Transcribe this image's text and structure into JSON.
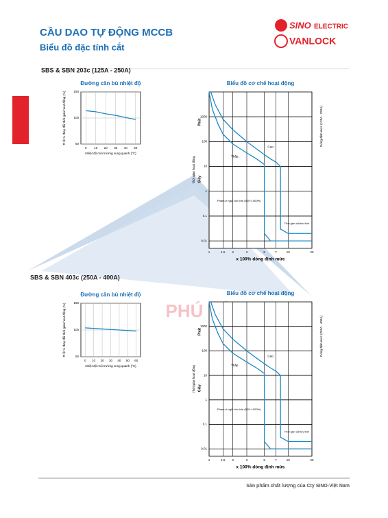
{
  "header": {
    "title": "CẦU DAO TỰ ĐỘNG MCCB",
    "subtitle": "Biểu đồ đặc tính cắt",
    "brand1": "SINO",
    "brand1b": "ELECTRIC",
    "brand2": "VANLOCK"
  },
  "watermark": "PHÚ LỘC",
  "sections": [
    {
      "heading": "SBS & SBN 203c (125A - 250A)",
      "temp_chart": {
        "type": "line",
        "title": "Đường cân bù nhiệt độ",
        "ylabel": "Tỉ lệ % thay đổi thời gian hoạt động (%)",
        "xlabel": "Nhiệt độ môi trường xung quanh (°C)",
        "x": [
          0,
          10,
          20,
          30,
          40,
          50
        ],
        "values": [
          114,
          112,
          108,
          105,
          101,
          97
        ],
        "color": "#1a8ac6",
        "xlim": [
          -5,
          55
        ],
        "ylim": [
          50,
          150
        ],
        "xticks": [
          0,
          10,
          20,
          30,
          40,
          50
        ],
        "yticks": [
          50,
          100,
          150
        ],
        "grid": true
      },
      "trip_chart": {
        "type": "line",
        "log": true,
        "title": "Biểu đồ cơ chế hoạt động",
        "ylabel": "Thời gian hoạt động",
        "minute_label": "Phút",
        "second_label": "Giây",
        "right_label": "Dòng định mức (125A - 250A)",
        "xlabel": "x 100% dòng định mức",
        "high_label": "Cao.",
        "low_label": "Thấp.",
        "range_label": "Phạm vi ngắt tức thời (500~1000%)",
        "instant_label": "Thời gian cắt tức thời",
        "xlim": [
          1,
          20
        ],
        "ylim": [
          0.005,
          10000
        ],
        "xticks": [
          1,
          1.5,
          2,
          3,
          5,
          7,
          10,
          20
        ],
        "yticks": [
          0.01,
          0.1,
          1,
          10,
          100,
          1000
        ],
        "grid": true,
        "series": [
          {
            "name": "Cao.",
            "color": "#1a8ac6",
            "x": [
              1.05,
              1.2,
              1.5,
              2,
              3,
              4,
              5,
              6,
              7,
              8,
              8,
              10,
              20
            ],
            "values": [
              10000,
              3000,
              800,
              300,
              100,
              50,
              30,
              20,
              15,
              10,
              0.03,
              0.02,
              0.02
            ]
          },
          {
            "name": "Thấp.",
            "color": "#1a8ac6",
            "x": [
              1,
              1.1,
              1.3,
              1.5,
              2,
              3,
              4,
              5,
              5,
              6,
              20
            ],
            "values": [
              10000,
              2000,
              500,
              200,
              80,
              35,
              20,
              12,
              0.02,
              0.01,
              0.01
            ]
          }
        ]
      }
    },
    {
      "heading": "SBS & SBN 403c (250A - 400A)",
      "temp_chart": {
        "type": "line",
        "title": "Đường cân bù nhiệt độ",
        "ylabel": "Tỉ lệ % thay đổi thời gian hoạt động (%)",
        "xlabel": "Nhiệt độ môi trường xung quanh (°C)",
        "x": [
          0,
          10,
          20,
          30,
          40,
          50,
          60
        ],
        "values": [
          104,
          103,
          102,
          101,
          100,
          99,
          98
        ],
        "color": "#1a8ac6",
        "xlim": [
          -5,
          65
        ],
        "ylim": [
          50,
          150
        ],
        "xticks": [
          0,
          10,
          20,
          30,
          40,
          50,
          60
        ],
        "yticks": [
          50,
          100,
          150
        ],
        "grid": true
      },
      "trip_chart": {
        "type": "line",
        "log": true,
        "title": "Biểu đồ cơ chế hoạt động",
        "ylabel": "Thời gian hoạt động",
        "minute_label": "Phút",
        "second_label": "Giây",
        "right_label": "Dòng định mức (250A - 400A)",
        "xlabel": "x 100% dòng định mức",
        "high_label": "Cao.",
        "low_label": "Thấp.",
        "range_label": "Phạm vi ngắt tức thời (500~1000%)",
        "instant_label": "Thời gian cắt tức thời",
        "xlim": [
          1,
          20
        ],
        "ylim": [
          0.005,
          10000
        ],
        "xticks": [
          1,
          1.5,
          2,
          3,
          5,
          7,
          10,
          20
        ],
        "yticks": [
          0.01,
          0.1,
          1,
          10,
          100,
          1000
        ],
        "grid": true,
        "series": [
          {
            "name": "Cao.",
            "color": "#1a8ac6",
            "x": [
              1.05,
              1.2,
              1.5,
              2,
              3,
              4,
              5,
              6,
              7,
              8,
              8,
              10,
              20
            ],
            "values": [
              10000,
              3000,
              800,
              300,
              100,
              50,
              30,
              20,
              15,
              10,
              0.03,
              0.02,
              0.02
            ]
          },
          {
            "name": "Thấp.",
            "color": "#1a8ac6",
            "x": [
              1,
              1.1,
              1.3,
              1.5,
              2,
              3,
              4,
              5,
              5,
              6,
              20
            ],
            "values": [
              10000,
              2000,
              500,
              200,
              80,
              35,
              20,
              12,
              0.02,
              0.01,
              0.01
            ]
          }
        ]
      }
    }
  ],
  "footer": "Sản phẩm chất lượng của Cty SINO-Việt Nam"
}
